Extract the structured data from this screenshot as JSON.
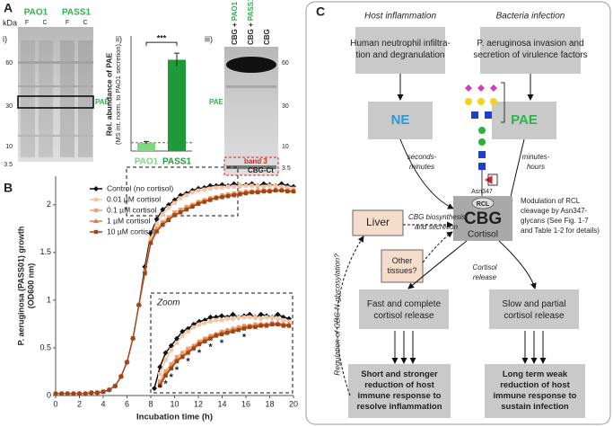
{
  "panel_labels": [
    "A",
    "B",
    "C"
  ],
  "gels": [
    {
      "subtitle": "i)",
      "unit": "kDa",
      "groups": [
        "PAO1",
        "PASS1"
      ],
      "lanes": [
        "F",
        "C",
        "F",
        "C"
      ],
      "markers": [
        60,
        30,
        10,
        3.5
      ],
      "band": "PAE"
    },
    {
      "subtitle": "iii)",
      "lanes": [
        {
          "base": "CBG +",
          "strain": "PAO1"
        },
        {
          "base": "CBG +",
          "strain": "PASS1"
        },
        {
          "base": "CBG"
        }
      ],
      "markers": [
        60,
        30,
        10,
        3.5
      ],
      "band": "PAE",
      "annotations": [
        "band 3",
        "CBG-Ct"
      ]
    }
  ],
  "chart_data": [
    {
      "type": "bar",
      "subtitle": "ii)",
      "ylabel": [
        "Rel. abundance of PAE",
        "(MS int. norm. to PAO1 secretion)"
      ],
      "categories": [
        "PAO1",
        "PASS1"
      ],
      "values": [
        1,
        11
      ],
      "errors": [
        0.15,
        0.8
      ],
      "colors": [
        "#7ed87e",
        "#1e9a3a"
      ],
      "ylim": [
        0,
        13
      ],
      "reference_line": 1,
      "annotation": "***"
    },
    {
      "type": "line",
      "xlabel": "Incubation time (h)",
      "ylabel": [
        "P. aeruginosa (PASS01) growth",
        "(OD600 nm)"
      ],
      "x": [
        0,
        0.5,
        1,
        1.5,
        2,
        2.5,
        3,
        3.5,
        4,
        4.5,
        5,
        5.5,
        6,
        6.5,
        7,
        7.5,
        8,
        8.5,
        9,
        9.5,
        10,
        10.5,
        11,
        11.5,
        12,
        12.5,
        13,
        13.5,
        14,
        14.5,
        15,
        15.5,
        16,
        16.5,
        17,
        17.5,
        18,
        18.5,
        19,
        19.5,
        20
      ],
      "series": [
        {
          "name": "Control (no cortisol)",
          "color": "#111111",
          "marker": "diamond",
          "values": [
            0.02,
            0.02,
            0.02,
            0.02,
            0.02,
            0.02,
            0.03,
            0.03,
            0.04,
            0.06,
            0.1,
            0.2,
            0.35,
            0.6,
            0.95,
            1.35,
            1.7,
            1.85,
            1.95,
            2.0,
            2.05,
            2.1,
            2.12,
            2.15,
            2.17,
            2.18,
            2.2,
            2.2,
            2.21,
            2.2,
            2.22,
            2.2,
            2.21,
            2.22,
            2.2,
            2.22,
            2.21,
            2.2,
            2.22,
            2.2,
            2.19
          ]
        },
        {
          "name": "0.01 µM cortisol",
          "color": "#f4c5a5",
          "marker": "square",
          "values": [
            0.02,
            0.02,
            0.02,
            0.02,
            0.02,
            0.02,
            0.03,
            0.03,
            0.04,
            0.06,
            0.1,
            0.2,
            0.35,
            0.6,
            0.95,
            1.3,
            1.65,
            1.8,
            1.9,
            1.97,
            2.02,
            2.07,
            2.1,
            2.13,
            2.15,
            2.16,
            2.17,
            2.18,
            2.18,
            2.19,
            2.19,
            2.2,
            2.2,
            2.2,
            2.2,
            2.19,
            2.2,
            2.2,
            2.19,
            2.18,
            2.17
          ]
        },
        {
          "name": "0.1 µM cortisol",
          "color": "#eda070",
          "marker": "square",
          "values": [
            0.02,
            0.02,
            0.02,
            0.02,
            0.02,
            0.02,
            0.03,
            0.03,
            0.04,
            0.06,
            0.1,
            0.2,
            0.35,
            0.6,
            0.95,
            1.3,
            1.62,
            1.75,
            1.82,
            1.87,
            1.92,
            1.95,
            1.98,
            2.0,
            2.03,
            2.05,
            2.07,
            2.08,
            2.1,
            2.11,
            2.12,
            2.13,
            2.14,
            2.14,
            2.15,
            2.15,
            2.15,
            2.16,
            2.15,
            2.15,
            2.14
          ]
        },
        {
          "name": "1 µM cortisol",
          "color": "#e07a3a",
          "marker": "triangle",
          "values": [
            0.02,
            0.02,
            0.02,
            0.02,
            0.02,
            0.02,
            0.03,
            0.03,
            0.04,
            0.06,
            0.1,
            0.2,
            0.35,
            0.6,
            0.95,
            1.3,
            1.6,
            1.73,
            1.8,
            1.85,
            1.9,
            1.93,
            1.96,
            1.99,
            2.02,
            2.04,
            2.06,
            2.08,
            2.09,
            2.1,
            2.11,
            2.12,
            2.13,
            2.14,
            2.14,
            2.15,
            2.15,
            2.15,
            2.16,
            2.15,
            2.15
          ]
        },
        {
          "name": "10 µM cortisol",
          "color": "#9f451a",
          "marker": "square",
          "values": [
            0.02,
            0.02,
            0.02,
            0.02,
            0.02,
            0.02,
            0.03,
            0.03,
            0.04,
            0.06,
            0.1,
            0.2,
            0.35,
            0.6,
            0.95,
            1.28,
            1.6,
            1.72,
            1.79,
            1.84,
            1.89,
            1.92,
            1.95,
            1.98,
            2.01,
            2.03,
            2.05,
            2.07,
            2.08,
            2.09,
            2.1,
            2.11,
            2.12,
            2.13,
            2.13,
            2.14,
            2.14,
            2.15,
            2.15,
            2.14,
            2.14
          ]
        }
      ],
      "xlim": [
        0,
        20
      ],
      "xticks": [
        0,
        2,
        4,
        6,
        8,
        10,
        12,
        14,
        16,
        18,
        20
      ],
      "ylim": [
        0,
        2.3
      ],
      "yticks": [
        0,
        0.5,
        1,
        1.5,
        2
      ],
      "legend": "upper left",
      "inset": {
        "label": "Zoom",
        "xlim": [
          8,
          20
        ],
        "ylim": [
          1.7,
          2.25
        ]
      },
      "asterisks": {
        "label": "*",
        "x": [
          8.5,
          9,
          9.5,
          10,
          11,
          12,
          13,
          14,
          16
        ]
      }
    }
  ],
  "diagram": {
    "headers": [
      "Host inflammation",
      "Bacteria infection"
    ],
    "host_box": [
      "Human neutrophil infiltra-",
      "tion and degranulation"
    ],
    "bact_box": [
      "P. aeruginosa invasion and",
      "secretion of virulence factors"
    ],
    "ne": "NE",
    "pae": "PAE",
    "ne_time": [
      "seconds-",
      "minutes"
    ],
    "pae_time": [
      "minutes-",
      "hours"
    ],
    "asn": "Asn347",
    "rcl": "RCL",
    "cbg": "CBG",
    "cortisol": "Cortisol",
    "modulation": [
      "Modulation of RCL",
      "cleavage by Asn347-",
      "glycans (See Fig. 1-7",
      "and Table 1-2 for details)"
    ],
    "liver": "Liver",
    "other": [
      "Other",
      "tissues?"
    ],
    "biosynthesis": [
      "CBG biosynthesis",
      "and secretion"
    ],
    "release": [
      "Cortisol",
      "release"
    ],
    "regulation": "Regulation of CBG N-glycosylation?",
    "fast": [
      "Fast and complete",
      "cortisol release"
    ],
    "slow": [
      "Slow and partial",
      "cortisol release"
    ],
    "short": [
      "Short and stronger",
      "reduction of host",
      "immune response to",
      "resolve inflammation"
    ],
    "long": [
      "Long term weak",
      "reduction of host",
      "immune response to",
      "sustain infection"
    ]
  }
}
